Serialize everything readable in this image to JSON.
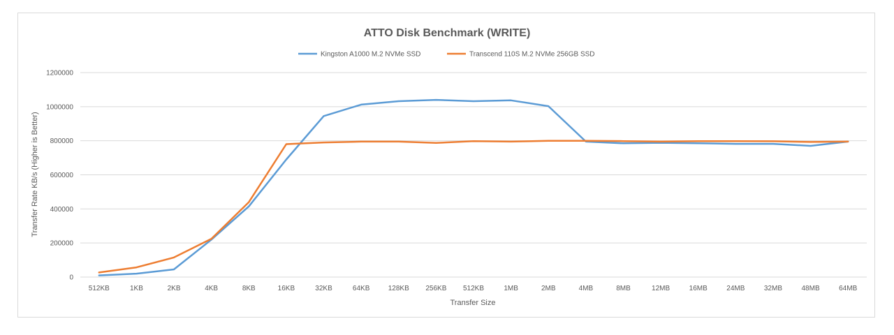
{
  "chart_data": {
    "type": "line",
    "title": "ATTO Disk Benchmark (WRITE)",
    "xlabel": "Transfer Size",
    "ylabel": "Transfer Rate KB/s (Higher is Better)",
    "ylim": [
      0,
      1200000
    ],
    "yticks": [
      0,
      200000,
      400000,
      600000,
      800000,
      1000000,
      1200000
    ],
    "ytick_labels": [
      "0",
      "200000",
      "400000",
      "600000",
      "800000",
      "1000000",
      "1200000"
    ],
    "grid": "horizontal",
    "legend": "top",
    "categories": [
      "512KB",
      "1KB",
      "2KB",
      "4KB",
      "8KB",
      "16KB",
      "32KB",
      "64KB",
      "128KB",
      "256KB",
      "512KB",
      "1MB",
      "2MB",
      "4MB",
      "8MB",
      "12MB",
      "16MB",
      "24MB",
      "32MB",
      "48MB",
      "64MB"
    ],
    "series": [
      {
        "name": "Kingston A1000 M.2 NVMe SSD",
        "color": "#5b9bd5",
        "values": [
          10000,
          20000,
          45000,
          220000,
          415000,
          690000,
          945000,
          1012000,
          1032000,
          1040000,
          1032000,
          1037000,
          1003000,
          795000,
          785000,
          788000,
          785000,
          782000,
          782000,
          770000,
          795000
        ]
      },
      {
        "name": "Transcend 110S M.2 NVMe 256GB SSD",
        "color": "#ed7d31",
        "values": [
          27000,
          57000,
          115000,
          225000,
          440000,
          780000,
          790000,
          795000,
          795000,
          787000,
          798000,
          795000,
          800000,
          800000,
          798000,
          795000,
          798000,
          798000,
          797000,
          793000,
          795000
        ]
      }
    ]
  }
}
